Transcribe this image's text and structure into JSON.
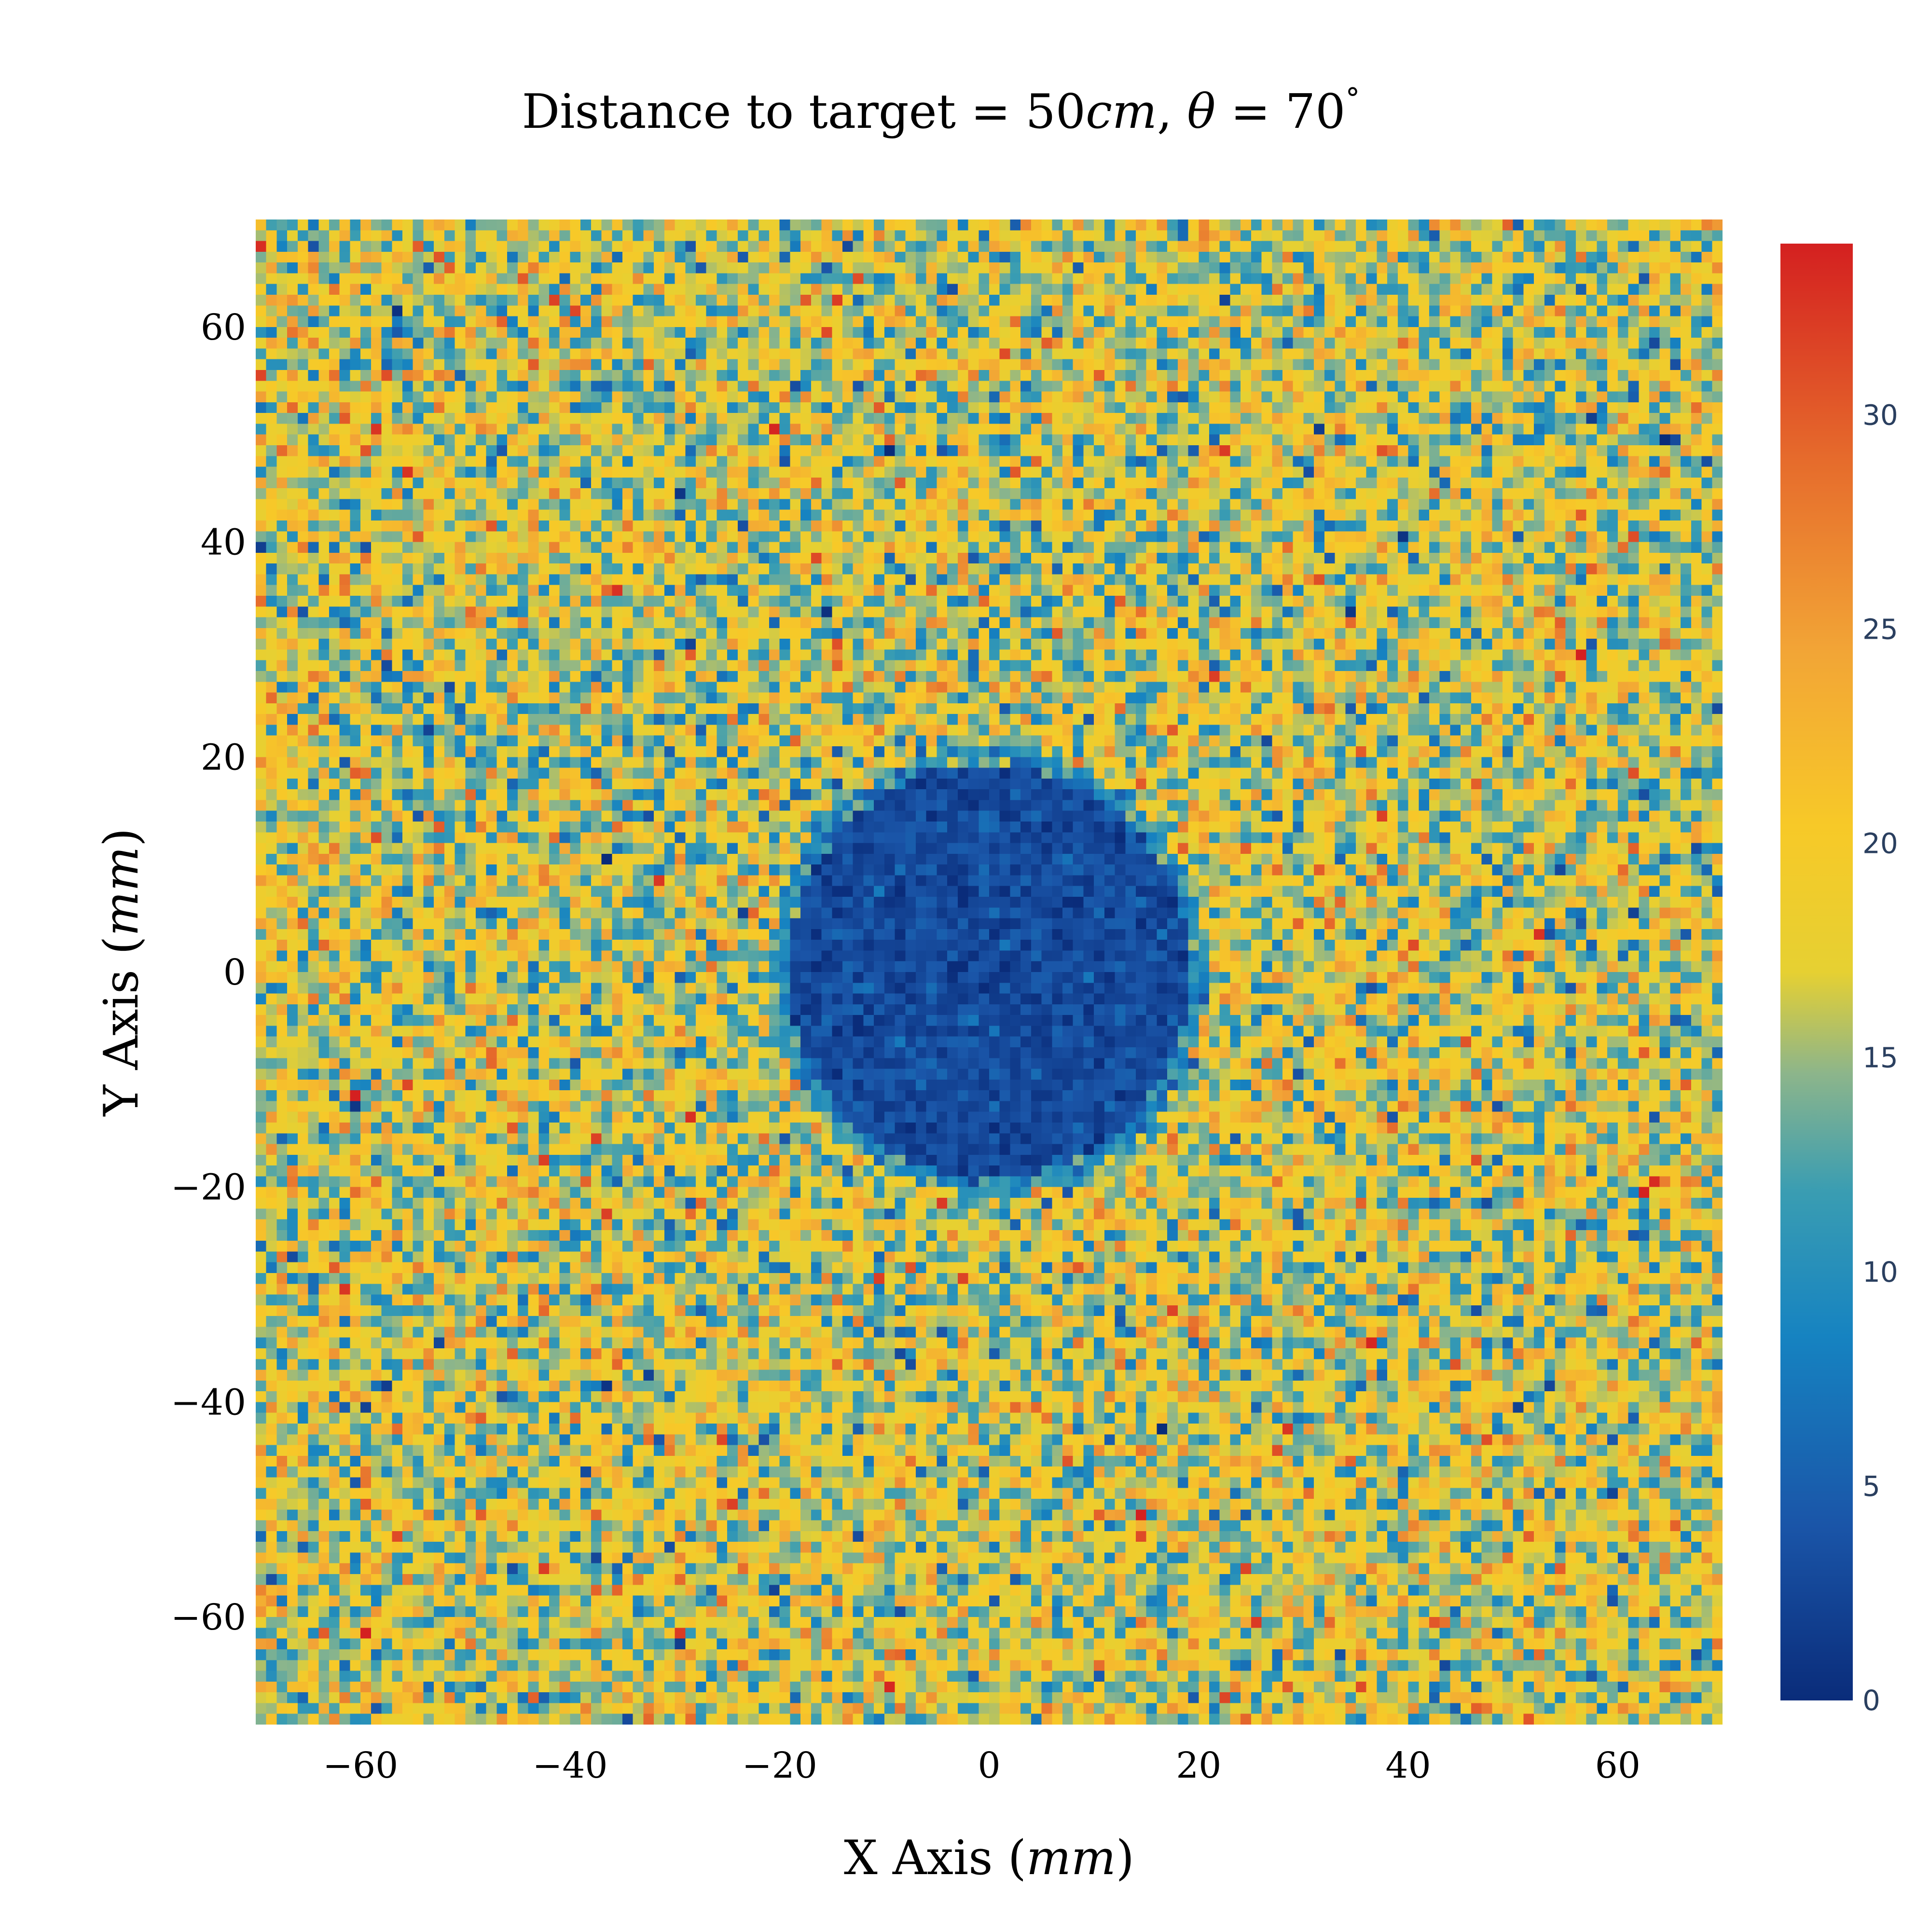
{
  "chart_data": {
    "type": "heatmap",
    "title": "Distance to target = 50cm, θ = 70°",
    "title_parts": {
      "prefix": "Distance to target = 50",
      "unit": "cm",
      "sep": ", ",
      "theta": "θ",
      "eq": " = 70",
      "deg": "°"
    },
    "xlabel": "X Axis (mm)",
    "xlabel_parts": {
      "text": "X Axis (",
      "unit": "mm",
      "close": ")"
    },
    "ylabel": "Y Axis (mm)",
    "ylabel_parts": {
      "text": "Y Axis (",
      "unit": "mm",
      "close": ")"
    },
    "xlim": [
      -70,
      70
    ],
    "ylim": [
      -70,
      70
    ],
    "x_ticks": [
      -60,
      -40,
      -20,
      0,
      20,
      40,
      60
    ],
    "y_ticks": [
      -60,
      -40,
      -20,
      0,
      20,
      40,
      60
    ],
    "x_tick_labels": [
      "−60",
      "−40",
      "−20",
      "0",
      "20",
      "40",
      "60"
    ],
    "y_tick_labels": [
      "−60",
      "−40",
      "−20",
      "0",
      "20",
      "40",
      "60"
    ],
    "grid_cells": [
      140,
      140
    ],
    "background_mean": 17,
    "background_spread": 5,
    "disk": {
      "center": [
        0,
        0
      ],
      "radius": 20,
      "mean": 3,
      "spread": 1.5
    },
    "zlim": [
      0,
      34
    ],
    "colorbar": {
      "ticks": [
        0,
        5,
        10,
        15,
        20,
        25,
        30
      ],
      "tick_labels": [
        "0",
        "5",
        "10",
        "15",
        "20",
        "25",
        "30"
      ]
    },
    "colorscale": [
      [
        0.0,
        "#0a2c7a"
      ],
      [
        0.12,
        "#1a55a8"
      ],
      [
        0.25,
        "#1683c1"
      ],
      [
        0.35,
        "#3a9db2"
      ],
      [
        0.43,
        "#8cb58b"
      ],
      [
        0.5,
        "#e6d032"
      ],
      [
        0.6,
        "#f7c928"
      ],
      [
        0.72,
        "#f2a536"
      ],
      [
        0.85,
        "#e66c2c"
      ],
      [
        1.0,
        "#d42020"
      ]
    ]
  }
}
